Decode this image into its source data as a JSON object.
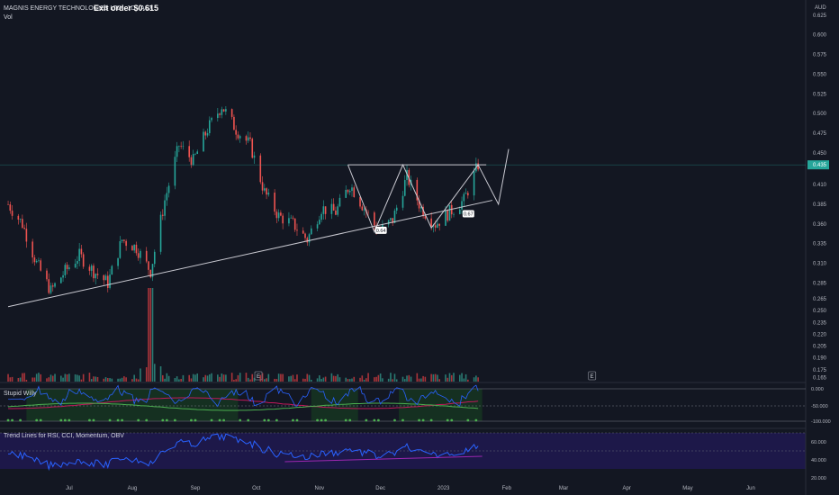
{
  "header": {
    "symbol": "MAGNIS ENERGY TECHNOLOGIES LTD · 1D · ASX",
    "banner": "Exit order $0.615",
    "volume_label": "Vol",
    "currency": "AUD"
  },
  "panes": {
    "indicator1_title": "Stupid Willy",
    "indicator2_title": "Trend Lines for RSI, CCI, Momentum, OBV"
  },
  "earnings_marker": "E",
  "current_price": "0.435",
  "annotations": [
    "0.64",
    "0.67"
  ],
  "colors": {
    "up": "#26a69a",
    "down": "#ef5350",
    "volume_up": "#2a7a72",
    "volume_down": "#a8343a",
    "background": "#131722",
    "trend": "#c9c9d1",
    "indicator_blue": "#2962ff",
    "indicator_green": "#4caf50",
    "indicator_red": "#c2185b"
  },
  "chart_data": {
    "type": "candlestick",
    "price_axis_ticks": [
      "0.625",
      "0.600",
      "0.575",
      "0.550",
      "0.525",
      "0.500",
      "0.475",
      "0.450",
      "0.435",
      "0.410",
      "0.385",
      "0.360",
      "0.335",
      "0.310",
      "0.285",
      "0.265",
      "0.250",
      "0.235",
      "0.220",
      "0.205",
      "0.190",
      "0.175",
      "0.165"
    ],
    "x_axis_ticks": [
      "Jul",
      "Aug",
      "Sep",
      "Oct",
      "Nov",
      "Dec",
      "2023",
      "Feb",
      "Mar",
      "Apr",
      "May",
      "Jun"
    ],
    "indicator1_ticks": [
      "0.000",
      "-50.000",
      "-100.000"
    ],
    "indicator2_ticks": [
      "60.000",
      "40.000",
      "20.000"
    ],
    "price_path": [
      [
        "2022-06-01",
        0.385
      ],
      [
        "2022-06-08",
        0.36
      ],
      [
        "2022-06-15",
        0.31
      ],
      [
        "2022-06-22",
        0.275
      ],
      [
        "2022-06-29",
        0.3
      ],
      [
        "2022-07-06",
        0.32
      ],
      [
        "2022-07-13",
        0.3
      ],
      [
        "2022-07-20",
        0.285
      ],
      [
        "2022-07-27",
        0.34
      ],
      [
        "2022-08-03",
        0.33
      ],
      [
        "2022-08-10",
        0.3
      ],
      [
        "2022-08-17",
        0.39
      ],
      [
        "2022-08-24",
        0.46
      ],
      [
        "2022-08-31",
        0.44
      ],
      [
        "2022-09-07",
        0.48
      ],
      [
        "2022-09-14",
        0.51
      ],
      [
        "2022-09-21",
        0.48
      ],
      [
        "2022-09-28",
        0.46
      ],
      [
        "2022-10-05",
        0.4
      ],
      [
        "2022-10-12",
        0.37
      ],
      [
        "2022-10-19",
        0.36
      ],
      [
        "2022-10-26",
        0.34
      ],
      [
        "2022-11-02",
        0.38
      ],
      [
        "2022-11-09",
        0.375
      ],
      [
        "2022-11-16",
        0.41
      ],
      [
        "2022-11-23",
        0.38
      ],
      [
        "2022-11-30",
        0.35
      ],
      [
        "2022-12-07",
        0.365
      ],
      [
        "2022-12-14",
        0.42
      ],
      [
        "2022-12-21",
        0.38
      ],
      [
        "2022-12-28",
        0.36
      ],
      [
        "2023-01-04",
        0.375
      ],
      [
        "2023-01-11",
        0.39
      ],
      [
        "2023-01-18",
        0.435
      ]
    ],
    "trend_lines": {
      "resistance": 0.435,
      "support_start": [
        "2022-06-01",
        0.255
      ],
      "support_end": [
        "2023-01-25",
        0.39
      ],
      "projection": [
        [
          "2023-01-18",
          0.435
        ],
        [
          "2023-01-28",
          0.385
        ],
        [
          "2023-02-02",
          0.455
        ]
      ]
    },
    "volume_spike": {
      "date": "2022-08-10"
    },
    "ylim": [
      0.16,
      0.635
    ]
  }
}
